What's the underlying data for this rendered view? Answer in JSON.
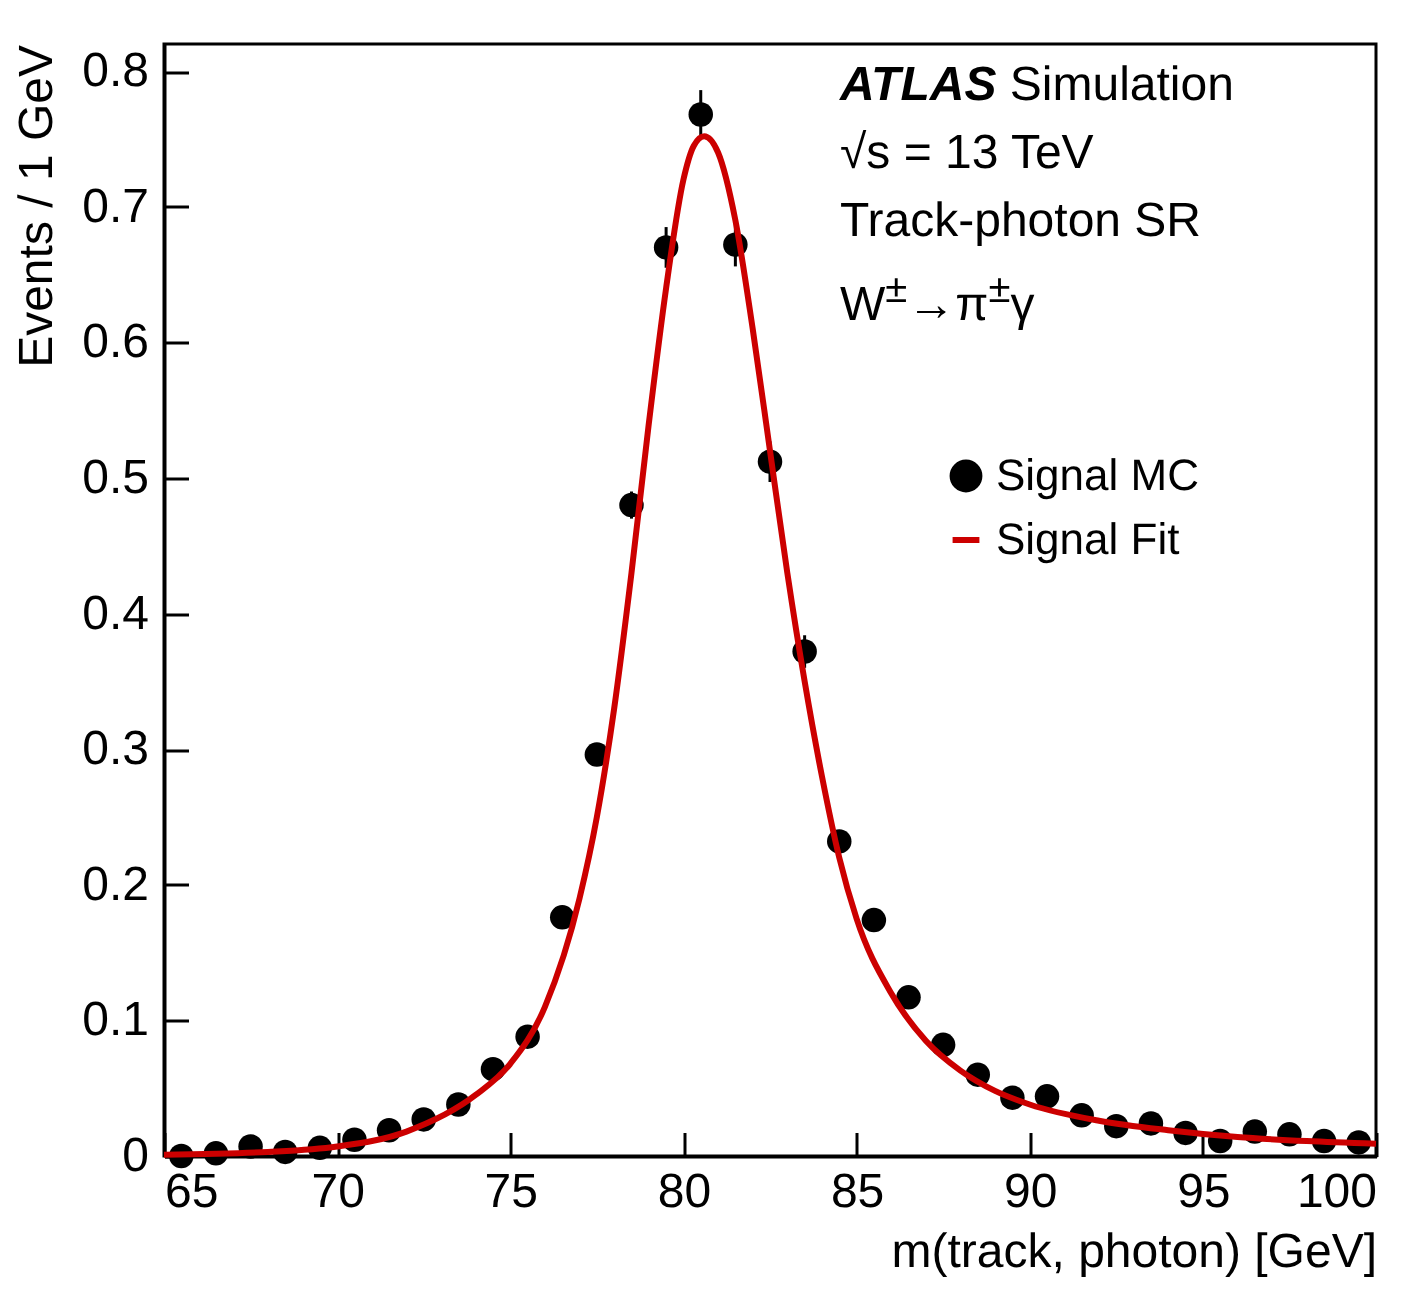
{
  "chart_data": {
    "type": "scatter",
    "xlabel": "m(track, photon) [GeV]",
    "ylabel": "Events / 1 GeV",
    "annotations": [
      "ATLAS Simulation",
      "√s = 13 TeV",
      "Track-photon SR",
      "W$^{±}$→π$^{±}$γ"
    ],
    "x": [
      65.5,
      66.5,
      67.5,
      68.5,
      69.5,
      70.5,
      71.5,
      72.5,
      73.5,
      74.5,
      75.5,
      76.5,
      77.5,
      78.5,
      79.5,
      80.5,
      81.5,
      82.5,
      83.5,
      84.5,
      85.5,
      86.5,
      87.5,
      88.5,
      89.5,
      90.5,
      91.5,
      92.5,
      93.5,
      94.5,
      95.5,
      96.5,
      97.5,
      98.5,
      99.5
    ],
    "series": [
      {
        "name": "Signal MC",
        "color": "#000000",
        "marker": "circle",
        "values": [
          0.0,
          0.002,
          0.007,
          0.003,
          0.006,
          0.012,
          0.019,
          0.027,
          0.038,
          0.064,
          0.088,
          0.176,
          0.296,
          0.48,
          0.67,
          0.768,
          0.672,
          0.512,
          0.372,
          0.232,
          0.174,
          0.117,
          0.082,
          0.06,
          0.043,
          0.044,
          0.03,
          0.022,
          0.024,
          0.017,
          0.011,
          0.018,
          0.016,
          0.011,
          0.01
        ],
        "errors": [
          null,
          null,
          null,
          null,
          null,
          null,
          null,
          null,
          null,
          null,
          null,
          null,
          null,
          0.01,
          0.015,
          0.018,
          0.016,
          0.015,
          0.012,
          null,
          null,
          null,
          null,
          null,
          null,
          null,
          null,
          null,
          null,
          null,
          null,
          null,
          null,
          null,
          null
        ]
      },
      {
        "name": "Signal Fit",
        "type": "line",
        "color": "#cc0000",
        "line_style": "solid",
        "x": [
          65,
          68,
          70,
          72,
          74,
          75,
          76,
          77,
          77.5,
          78,
          78.5,
          79,
          79.5,
          80,
          80.3,
          80.6,
          81,
          81.5,
          82,
          82.5,
          83,
          83.5,
          84,
          84.5,
          85,
          86,
          87,
          88,
          89,
          90,
          92,
          94,
          96,
          98,
          100
        ],
        "values": [
          0.001,
          0.003,
          0.007,
          0.018,
          0.045,
          0.068,
          0.11,
          0.19,
          0.25,
          0.33,
          0.43,
          0.54,
          0.64,
          0.72,
          0.745,
          0.752,
          0.74,
          0.69,
          0.61,
          0.52,
          0.43,
          0.35,
          0.28,
          0.22,
          0.175,
          0.12,
          0.085,
          0.063,
          0.048,
          0.038,
          0.026,
          0.019,
          0.014,
          0.011,
          0.009
        ]
      }
    ],
    "xlim": [
      65,
      100
    ],
    "xticks": [
      65,
      70,
      75,
      80,
      85,
      90,
      95,
      100
    ],
    "ylim": [
      0,
      0.82
    ],
    "yticks": [
      0,
      0.1,
      0.2,
      0.3,
      0.4,
      0.5,
      0.6,
      0.7,
      0.8
    ],
    "grid": false,
    "legend": "right"
  }
}
